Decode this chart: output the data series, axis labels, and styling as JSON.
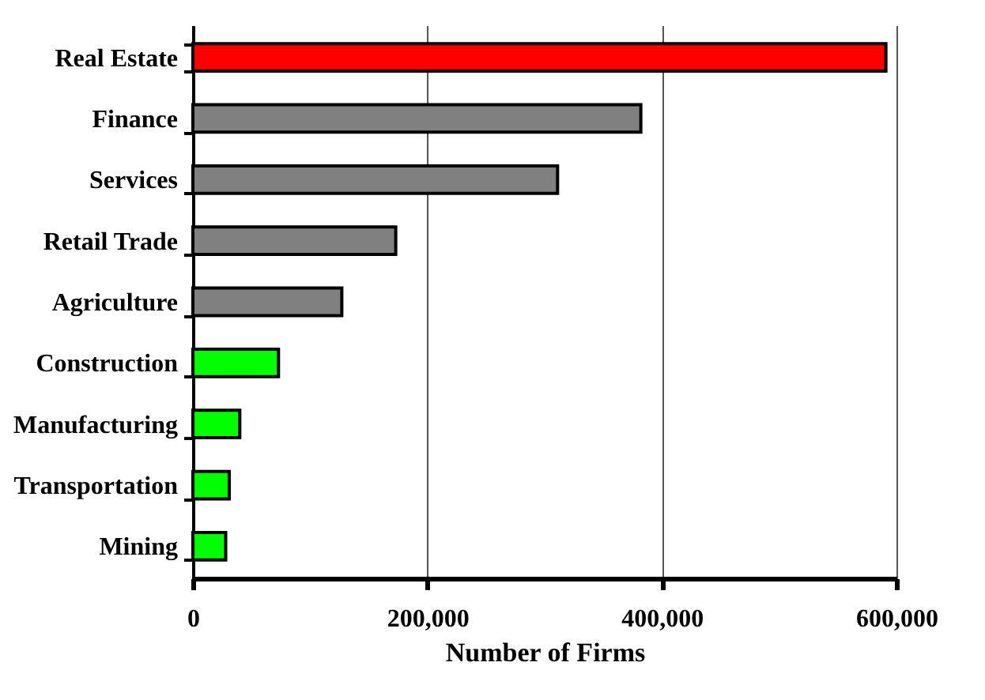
{
  "chart_data": {
    "type": "bar",
    "orientation": "horizontal",
    "xlabel": "Number of Firms",
    "categories": [
      "Real Estate",
      "Finance",
      "Services",
      "Retail Trade",
      "Agriculture",
      "Construction",
      "Manufacturing",
      "Transportation",
      "Mining"
    ],
    "values": [
      591000,
      382000,
      311000,
      173000,
      127000,
      73000,
      40000,
      31000,
      28000
    ],
    "colors": [
      "#ff0000",
      "#808080",
      "#808080",
      "#808080",
      "#808080",
      "#00ff00",
      "#00ff00",
      "#00ff00",
      "#00ff00"
    ],
    "xlim": [
      0,
      600000
    ],
    "xticks": [
      0,
      {
        "value": 200000,
        "label": "200,000"
      },
      {
        "value": 400000,
        "label": "400,000"
      },
      {
        "value": 600000,
        "label": "600,000"
      }
    ],
    "grid": "x"
  }
}
